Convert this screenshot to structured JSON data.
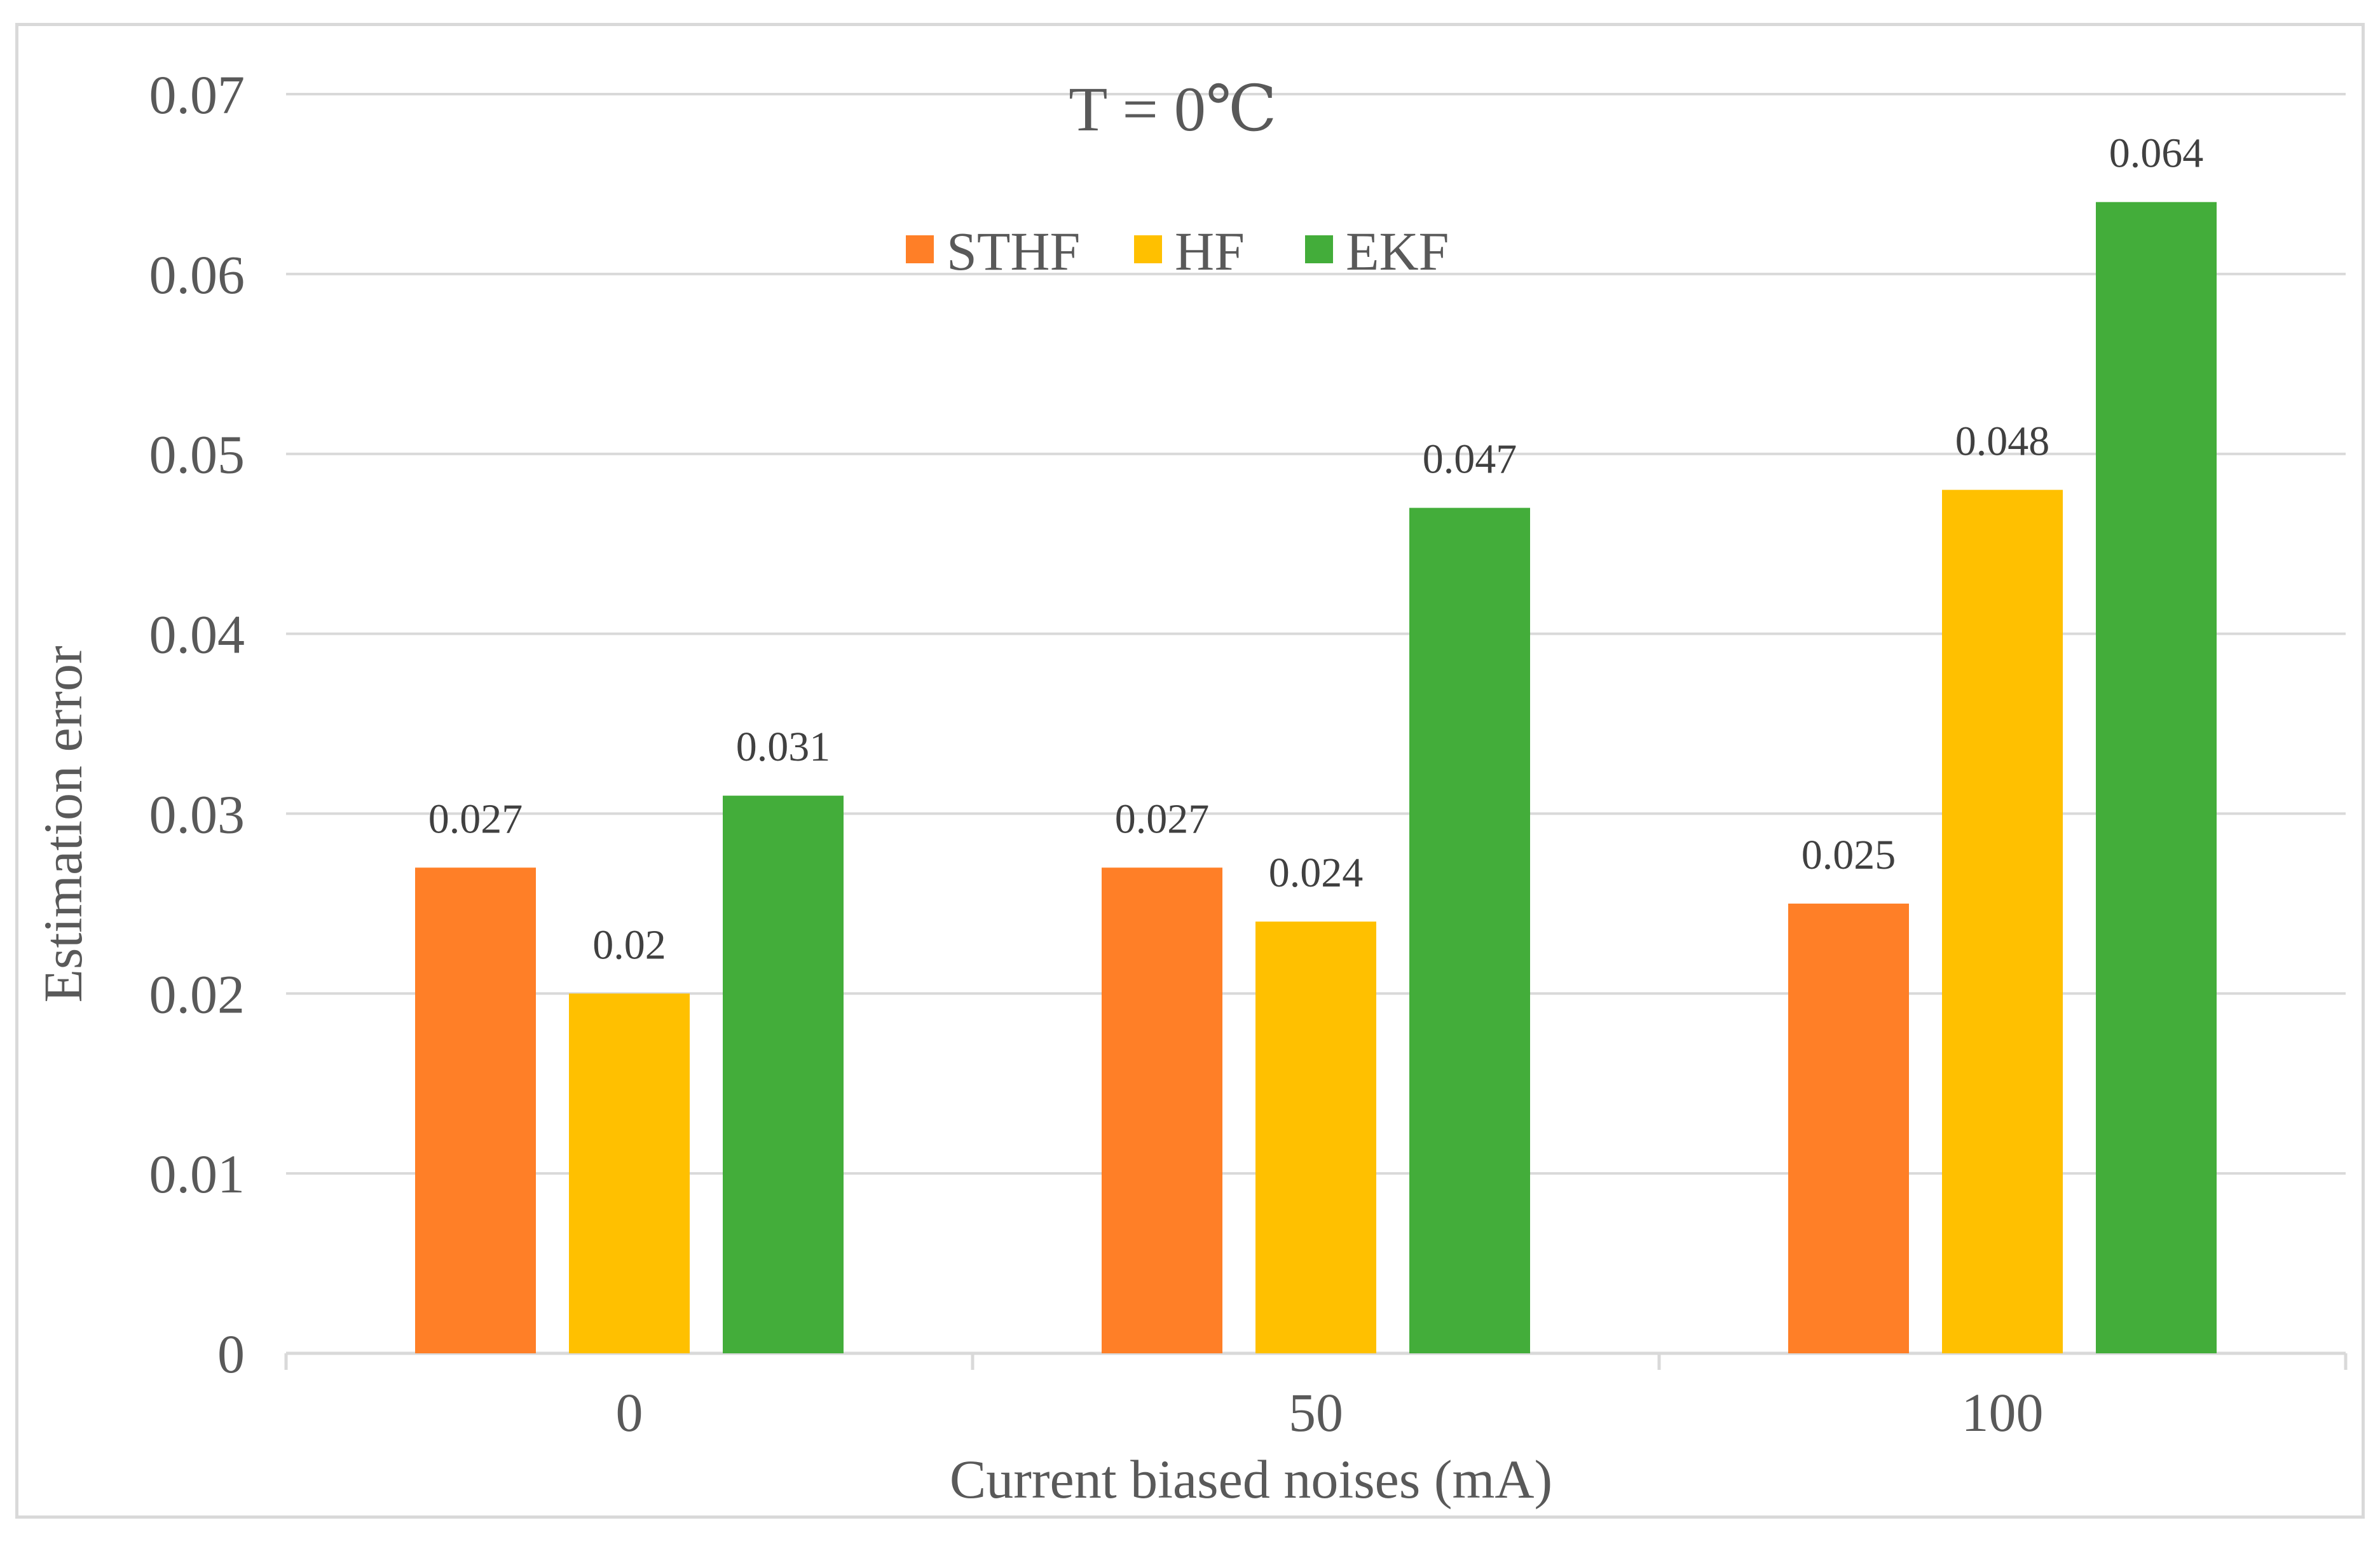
{
  "chart_data": {
    "type": "bar",
    "title": "T = 0℃",
    "xlabel": "Current biased noises (mA)",
    "ylabel": "Estimation error",
    "categories": [
      "0",
      "50",
      "100"
    ],
    "ylim": [
      0,
      0.07
    ],
    "yticks": [
      0,
      0.01,
      0.02,
      0.03,
      0.04,
      0.05,
      0.06,
      0.07
    ],
    "ytick_labels": [
      "0",
      "0.01",
      "0.02",
      "0.03",
      "0.04",
      "0.05",
      "0.06",
      "0.07"
    ],
    "grid": true,
    "legend_position": "top-center",
    "series": [
      {
        "name": "STHF",
        "color": "#ff7f27",
        "values": [
          0.027,
          0.027,
          0.025
        ],
        "labels": [
          "0.027",
          "0.027",
          "0.025"
        ]
      },
      {
        "name": "HF",
        "color": "#ffc000",
        "values": [
          0.02,
          0.024,
          0.048
        ],
        "labels": [
          "0.02",
          "0.024",
          "0.048"
        ]
      },
      {
        "name": "EKF",
        "color": "#43ad3a",
        "values": [
          0.031,
          0.047,
          0.064
        ],
        "labels": [
          "0.031",
          "0.047",
          "0.064"
        ]
      }
    ]
  }
}
